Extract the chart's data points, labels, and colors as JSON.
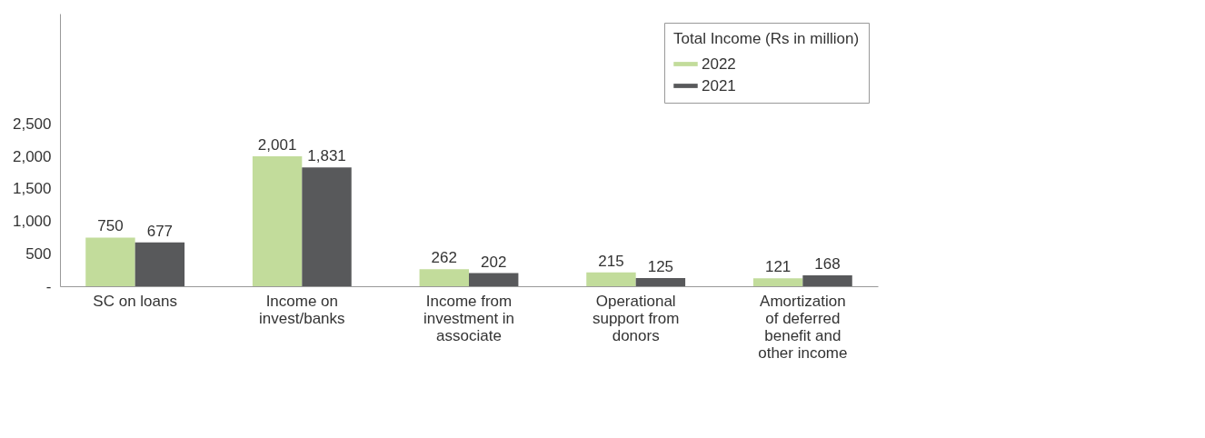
{
  "chart_data": {
    "type": "bar",
    "categories": [
      "SC on loans",
      "Income on invest/banks",
      "Income from investment in associate",
      "Operational support from donors",
      "Amortization of deferred benefit and other income"
    ],
    "series": [
      {
        "name": "2022",
        "color": "#c2dc9b",
        "values": [
          750,
          2001,
          262,
          215,
          121
        ],
        "value_labels": [
          "750",
          "2,001",
          "262",
          "215",
          "121"
        ]
      },
      {
        "name": "2021",
        "color": "#58595b",
        "values": [
          677,
          1831,
          202,
          125,
          168
        ],
        "value_labels": [
          "677",
          "1,831",
          "202",
          "125",
          "168"
        ]
      }
    ],
    "legend_title": "Total Income (Rs in million)",
    "legend": "top right",
    "grid": false,
    "ylim": [
      0,
      4200
    ],
    "yticks": [
      {
        "value": 0,
        "label": "-"
      },
      500,
      {
        "value": 1000,
        "label": "1,000"
      },
      {
        "value": 1500,
        "label": "1,500"
      },
      {
        "value": 2000,
        "label": "2,000"
      },
      {
        "value": 2500,
        "label": "2,500"
      }
    ]
  }
}
